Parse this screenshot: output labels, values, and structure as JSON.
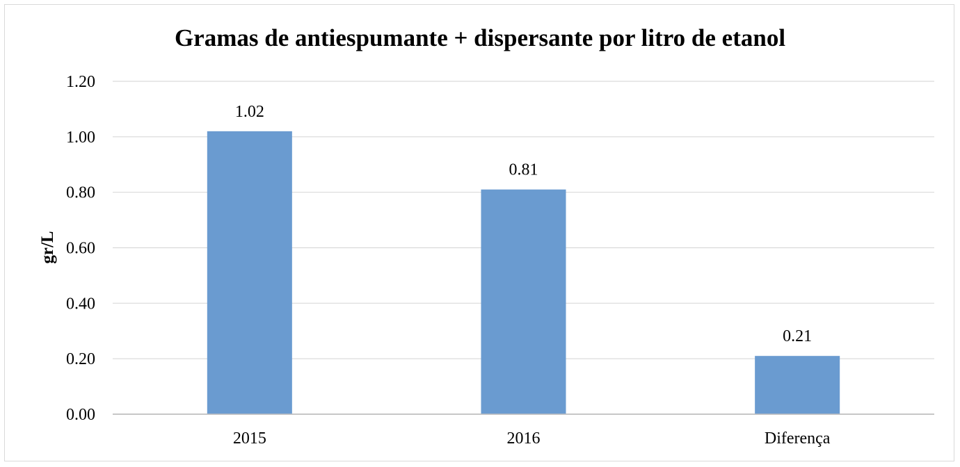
{
  "chart_data": {
    "type": "bar",
    "title": "Gramas de antiespumante + dispersante por litro de etanol",
    "xlabel": "",
    "ylabel": "gr/L",
    "categories": [
      "2015",
      "2016",
      "Diferença"
    ],
    "values": [
      1.02,
      0.81,
      0.21
    ],
    "value_labels": [
      "1.02",
      "0.81",
      "0.21"
    ],
    "ylim": [
      0,
      1.2
    ],
    "yticks": [
      0,
      0.2,
      0.4,
      0.6,
      0.8,
      1.0,
      1.2
    ],
    "ytick_labels": [
      "0.00",
      "0.20",
      "0.40",
      "0.60",
      "0.80",
      "1.00",
      "1.20"
    ],
    "grid": true,
    "legend": "none",
    "bar_color": "#6a9bd0"
  }
}
